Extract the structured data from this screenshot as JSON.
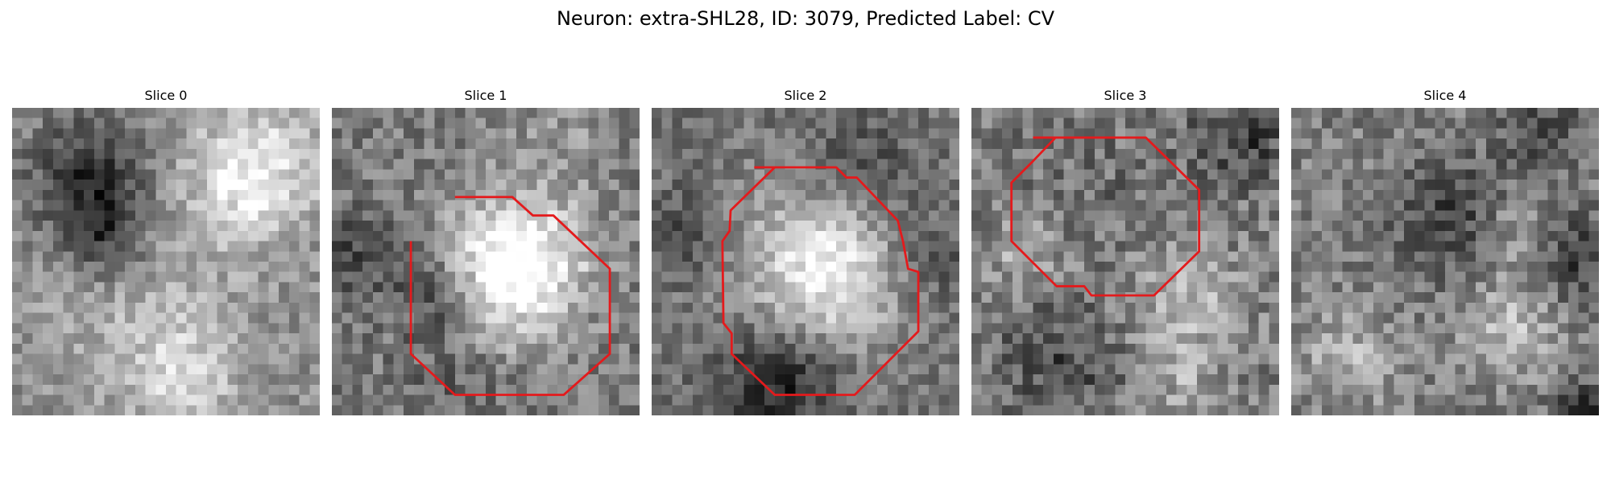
{
  "figure": {
    "title": "Neuron: extra-SHL28, ID: 3079, Predicted Label: CV",
    "contour_color": "#e41a1c"
  },
  "slices": [
    {
      "label": "Slice 0",
      "has_contour": false
    },
    {
      "label": "Slice 1",
      "has_contour": true
    },
    {
      "label": "Slice 2",
      "has_contour": true
    },
    {
      "label": "Slice 3",
      "has_contour": true
    },
    {
      "label": "Slice 4",
      "has_contour": false
    }
  ]
}
